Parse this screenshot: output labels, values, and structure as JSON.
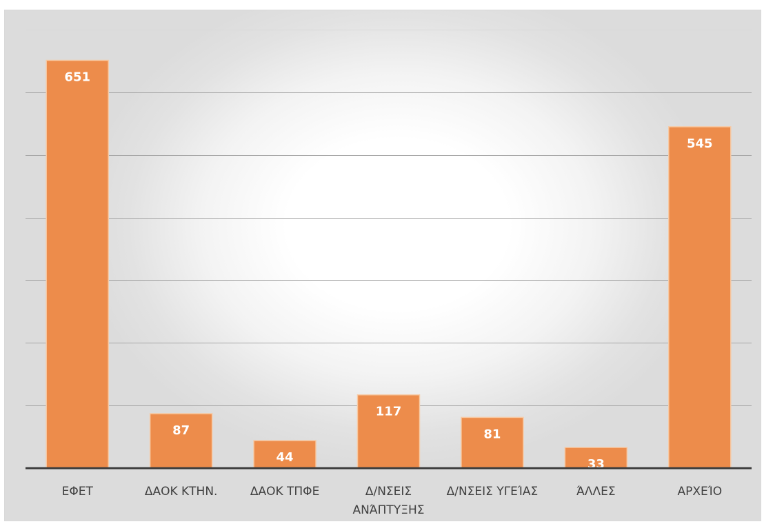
{
  "chart_data": {
    "type": "bar",
    "categories": [
      [
        "ΕΦΕΤ"
      ],
      [
        "ΔΑΟΚ ΚΤΗΝ."
      ],
      [
        "ΔΑΟΚ ΤΠΦΕ"
      ],
      [
        "Δ/ΝΣΕΙΣ",
        "ΑΝΆΠΤΥΞΗΣ"
      ],
      [
        "Δ/ΝΣΕΙΣ ΥΓΕΊΑΣ"
      ],
      [
        "ΆΛΛΕΣ"
      ],
      [
        "ΑΡΧΕΊΟ"
      ]
    ],
    "values": [
      651,
      87,
      44,
      117,
      81,
      33,
      545
    ],
    "data_labels": [
      "651",
      "87",
      "44",
      "117",
      "81",
      "33",
      "545"
    ],
    "ylim": [
      0,
      700
    ],
    "ytick_step": 100,
    "grid": true,
    "title": "",
    "xlabel": "",
    "ylabel": "",
    "colors": {
      "bar": "#ed8c4b",
      "bar_edge": "#f7c9a3",
      "label": "#ffffff",
      "axis": "#3f3f3f",
      "grid": "#a6a6a6",
      "category_text": "#404040"
    }
  }
}
